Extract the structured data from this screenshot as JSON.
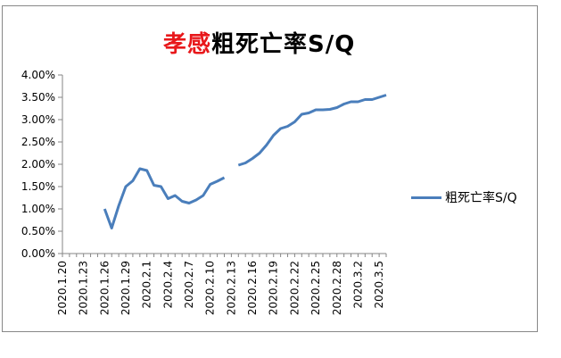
{
  "title": {
    "part1": "孝感",
    "part2": "粗死亡率S/Q"
  },
  "legend": {
    "label": "粗死亡率S/Q"
  },
  "colors": {
    "series": "#4a7ebb",
    "title_accent": "#e8181b"
  },
  "chart_data": {
    "type": "line",
    "title": "孝感粗死亡率S/Q",
    "xlabel": "",
    "ylabel": "",
    "ylim": [
      0,
      4.0
    ],
    "yticks": [
      "0.00%",
      "0.50%",
      "1.00%",
      "1.50%",
      "2.00%",
      "2.50%",
      "3.00%",
      "3.50%",
      "4.00%"
    ],
    "grid": false,
    "legend_position": "right",
    "categories": [
      "2020.1.20",
      "2020.1.21",
      "2020.1.22",
      "2020.1.23",
      "2020.1.24",
      "2020.1.25",
      "2020.1.26",
      "2020.1.27",
      "2020.1.28",
      "2020.1.29",
      "2020.1.30",
      "2020.1.31",
      "2020.2.1",
      "2020.2.2",
      "2020.2.3",
      "2020.2.4",
      "2020.2.5",
      "2020.2.6",
      "2020.2.7",
      "2020.2.8",
      "2020.2.9",
      "2020.2.10",
      "2020.2.11",
      "2020.2.12",
      "2020.2.13",
      "2020.2.14",
      "2020.2.15",
      "2020.2.16",
      "2020.2.17",
      "2020.2.18",
      "2020.2.19",
      "2020.2.20",
      "2020.2.21",
      "2020.2.22",
      "2020.2.23",
      "2020.2.24",
      "2020.2.25",
      "2020.2.26",
      "2020.2.27",
      "2020.2.28",
      "2020.2.29",
      "2020.3.1",
      "2020.3.2",
      "2020.3.3",
      "2020.3.4",
      "2020.3.5",
      "2020.3.6"
    ],
    "xtick_labels": [
      "2020.1.20",
      "2020.1.23",
      "2020.1.26",
      "2020.1.29",
      "2020.2.1",
      "2020.2.4",
      "2020.2.7",
      "2020.2.10",
      "2020.2.13",
      "2020.2.16",
      "2020.2.19",
      "2020.2.22",
      "2020.2.25",
      "2020.2.28",
      "2020.3.2",
      "2020.3.5"
    ],
    "series": [
      {
        "name": "粗死亡率S/Q",
        "values": [
          null,
          null,
          null,
          null,
          null,
          null,
          1.0,
          0.57,
          1.07,
          1.5,
          1.63,
          1.9,
          1.86,
          1.53,
          1.5,
          1.23,
          1.3,
          1.17,
          1.13,
          1.2,
          1.3,
          1.55,
          1.62,
          1.7,
          null,
          1.98,
          2.03,
          2.13,
          2.25,
          2.43,
          2.65,
          2.8,
          2.85,
          2.95,
          3.12,
          3.15,
          3.22,
          3.22,
          3.23,
          3.27,
          3.35,
          3.4,
          3.4,
          3.45,
          3.45,
          3.5,
          3.55
        ]
      }
    ]
  }
}
